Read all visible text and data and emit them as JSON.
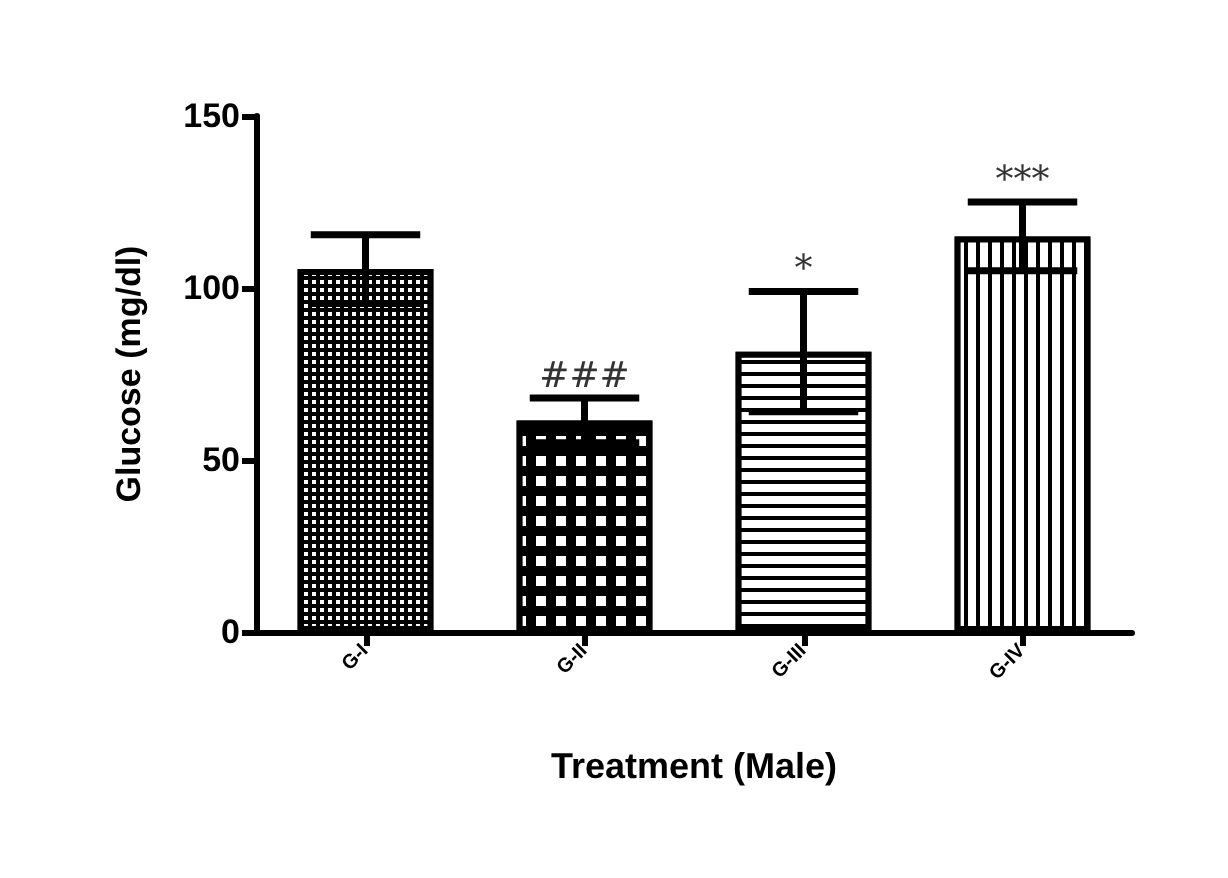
{
  "chart_data": {
    "type": "bar",
    "xlabel": "Treatment (Male)",
    "ylabel": "Glucose (mg/dl)",
    "categories": [
      "G-I",
      "G-II",
      "G-III",
      "G-IV"
    ],
    "values": [
      105.5,
      61.5,
      81.5,
      115
    ],
    "errors": [
      10,
      6.5,
      17.5,
      10
    ],
    "color": "#000000",
    "ylim": [
      0,
      150
    ],
    "yticks": [
      0,
      50,
      100,
      150
    ],
    "grid": false,
    "annotations": [
      {
        "text": "###",
        "x": "G-II",
        "y": 68
      },
      {
        "text": "*",
        "x": "G-III",
        "y": 99
      },
      {
        "text": "***",
        "x": "G-IV",
        "y": 125
      }
    ]
  }
}
